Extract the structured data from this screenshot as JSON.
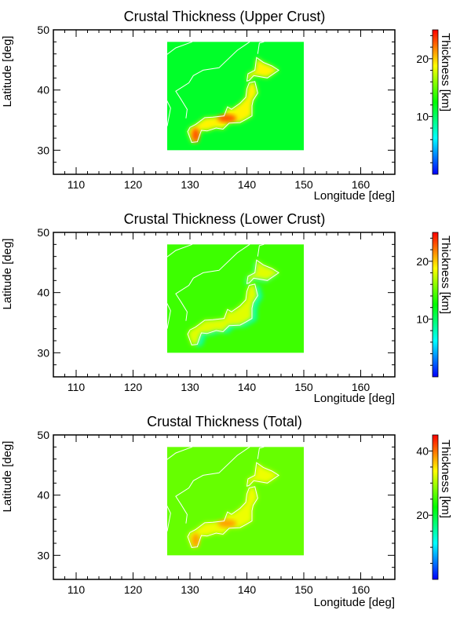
{
  "colors": {
    "background": "#ffffff",
    "axis": "#000000",
    "coastline": "#ffffff",
    "colormap": [
      "#0000ff",
      "#00ffff",
      "#00ff00",
      "#ffff00",
      "#ff0000"
    ]
  },
  "chart_data": [
    {
      "type": "heatmap",
      "title": "Crustal Thickness (Upper Crust)",
      "xlabel": "Longitude [deg]",
      "ylabel": "Latitude [deg]",
      "xlim": [
        106,
        166
      ],
      "ylim": [
        26,
        50
      ],
      "xticks": [
        110,
        120,
        130,
        140,
        150,
        160
      ],
      "yticks": [
        30,
        40,
        50
      ],
      "data_extent": {
        "lon": [
          126,
          150
        ],
        "lat": [
          30,
          48
        ]
      },
      "background_value": 11.5,
      "land_value": 19,
      "hotspot_value": 23,
      "colorbar": {
        "label": "Thickness [km]",
        "range": [
          0,
          25
        ],
        "ticks": [
          10,
          20
        ]
      }
    },
    {
      "type": "heatmap",
      "title": "Crustal Thickness (Lower Crust)",
      "xlabel": "Longitude [deg]",
      "ylabel": "Latitude [deg]",
      "xlim": [
        106,
        166
      ],
      "ylim": [
        26,
        50
      ],
      "xticks": [
        110,
        120,
        130,
        140,
        150,
        160
      ],
      "yticks": [
        30,
        40,
        50
      ],
      "data_extent": {
        "lon": [
          126,
          150
        ],
        "lat": [
          30,
          48
        ]
      },
      "background_value": 14,
      "land_value": 18,
      "low_value": 8,
      "colorbar": {
        "label": "Thickness [km]",
        "range": [
          0,
          25
        ],
        "ticks": [
          10,
          20
        ]
      }
    },
    {
      "type": "heatmap",
      "title": "Crustal Thickness (Total)",
      "xlabel": "Longitude [deg]",
      "ylabel": "Latitude [deg]",
      "xlim": [
        106,
        166
      ],
      "ylim": [
        26,
        50
      ],
      "xticks": [
        110,
        120,
        130,
        140,
        150,
        160
      ],
      "yticks": [
        30,
        40,
        50
      ],
      "data_extent": {
        "lon": [
          126,
          150
        ],
        "lat": [
          30,
          48
        ]
      },
      "background_value": 27,
      "land_value": 33,
      "hotspot_value": 38,
      "colorbar": {
        "label": "Thickness [km]",
        "range": [
          0,
          45
        ],
        "ticks": [
          20,
          40
        ]
      }
    }
  ]
}
